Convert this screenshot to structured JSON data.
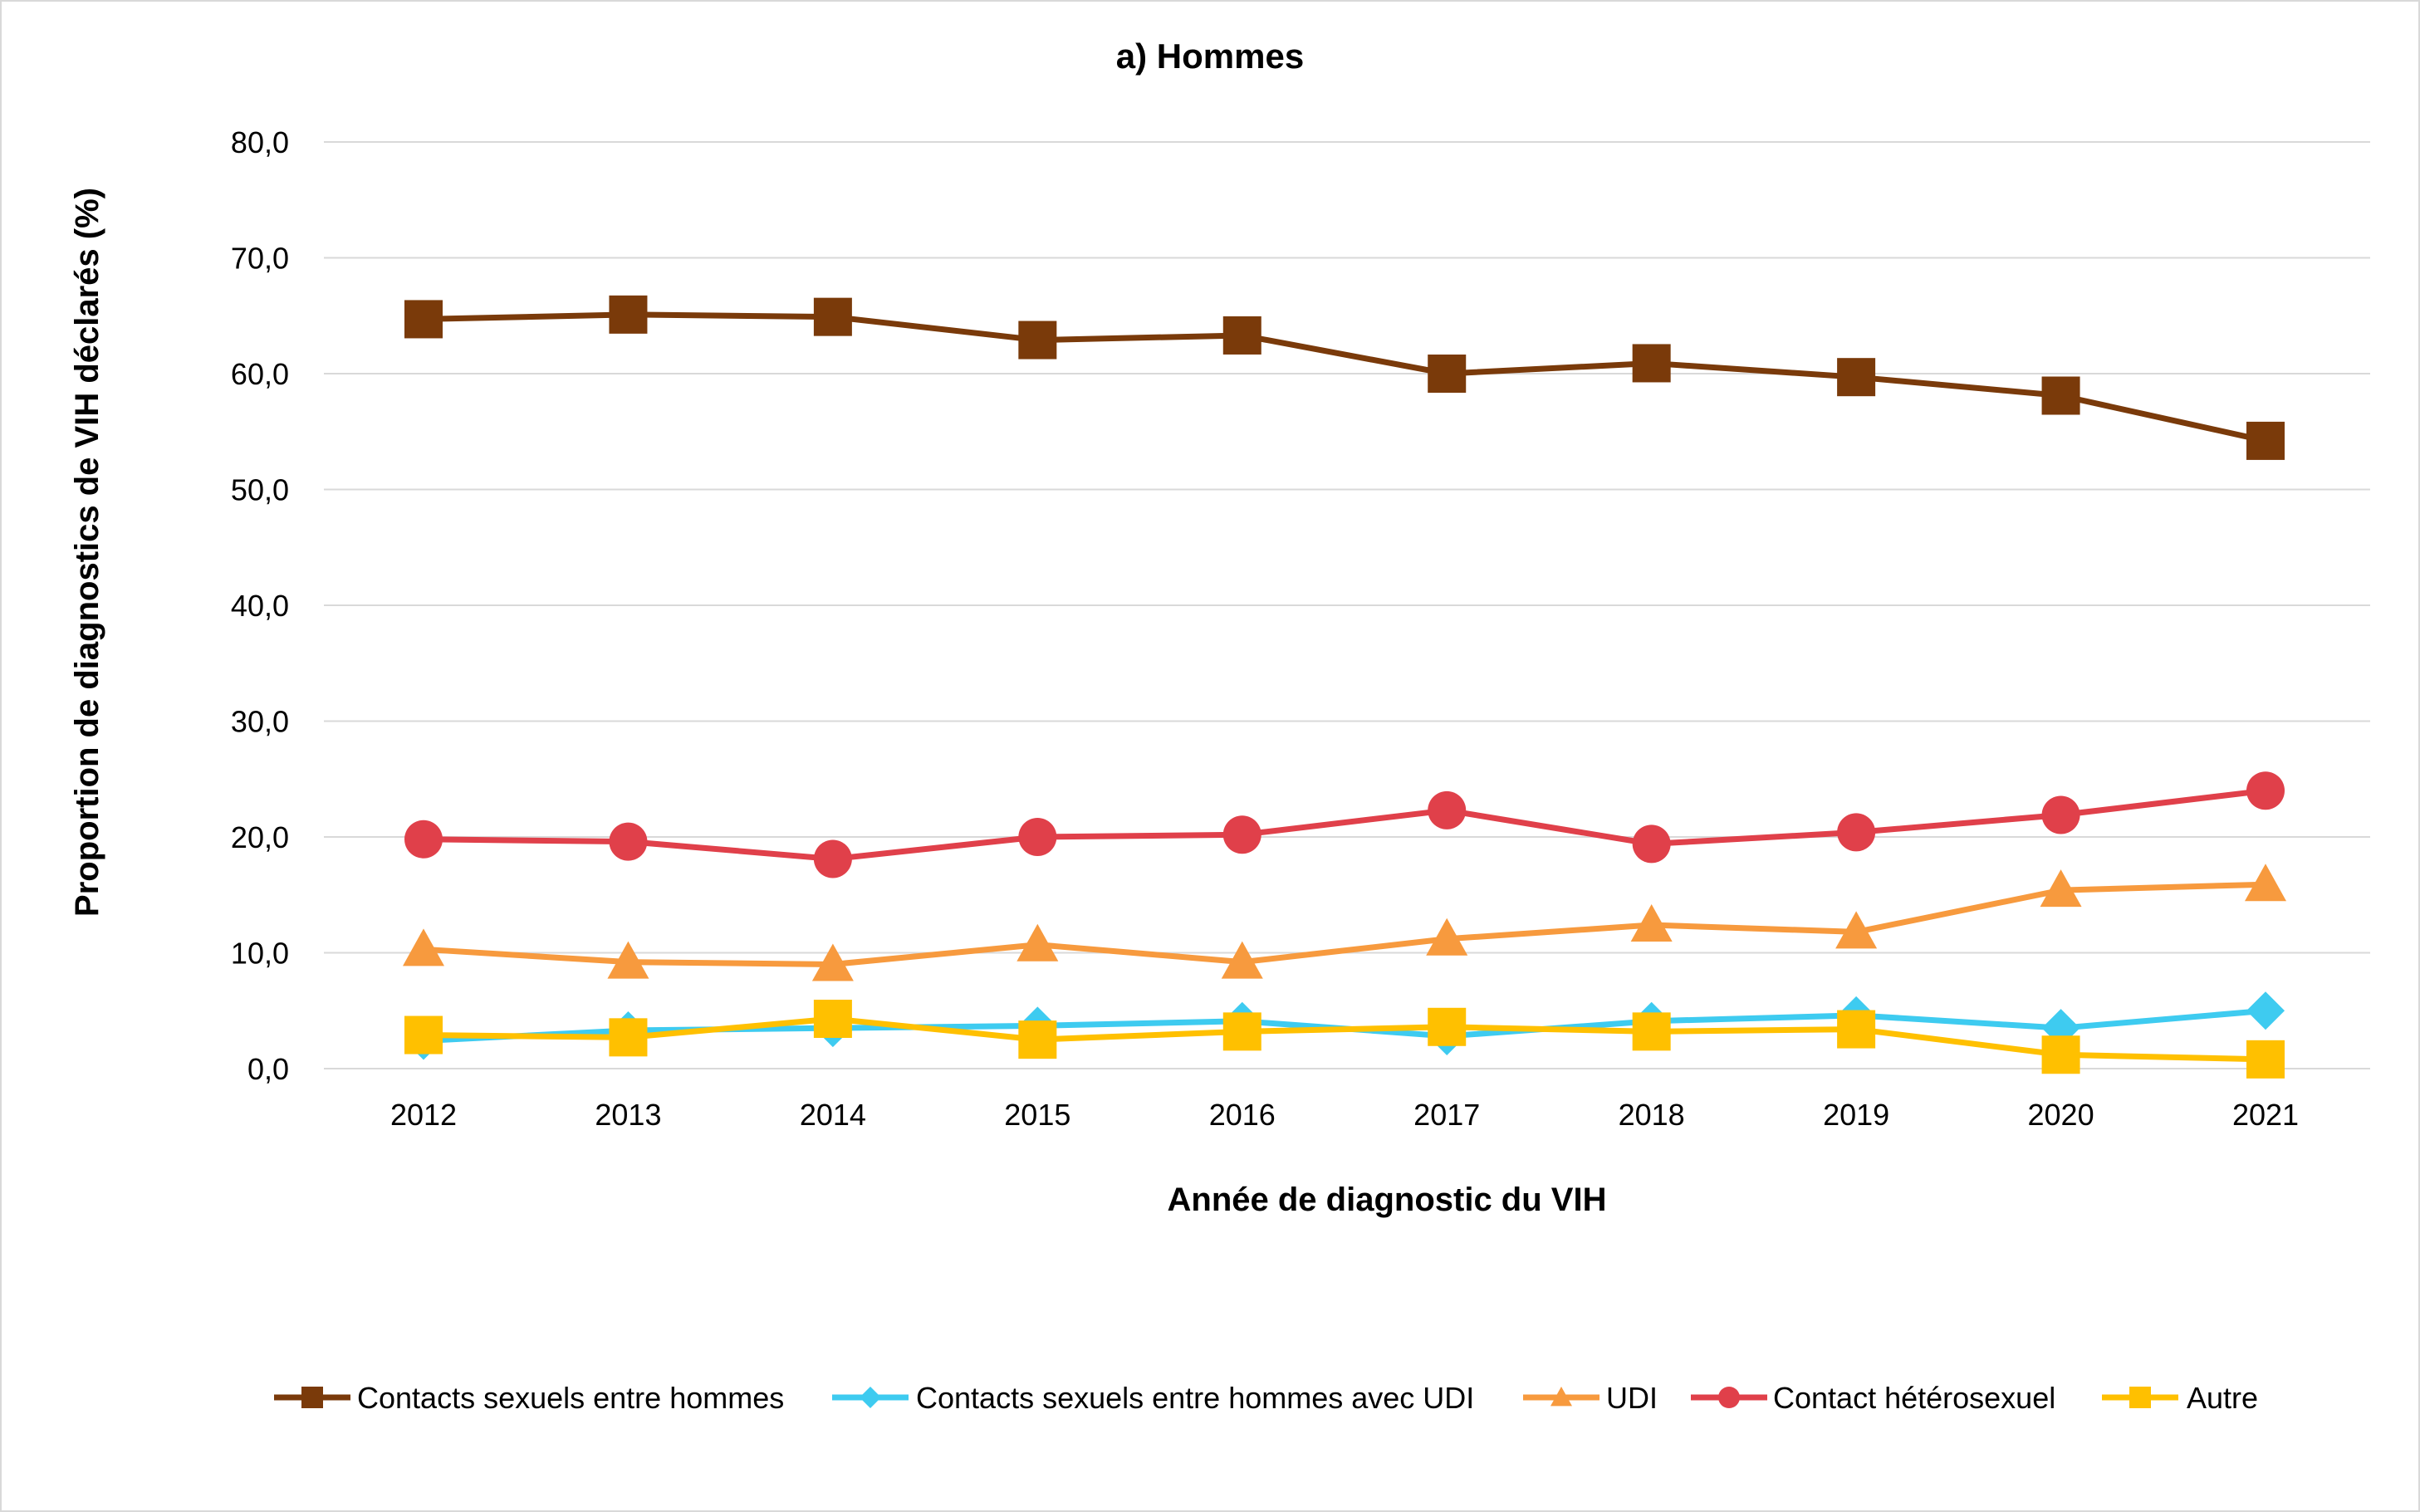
{
  "chart_data": {
    "type": "line",
    "title": "a) Hommes",
    "xlabel": "Année de diagnostic du VIH",
    "ylabel": "Proportion de diagnostics de VIH déclarés (%)",
    "ylim": [
      0,
      80
    ],
    "y_ticks": [
      "0,0",
      "10,0",
      "20,0",
      "30,0",
      "40,0",
      "50,0",
      "60,0",
      "70,0",
      "80,0"
    ],
    "grid": true,
    "legend_position": "bottom",
    "categories": [
      "2012",
      "2013",
      "2014",
      "2015",
      "2016",
      "2017",
      "2018",
      "2019",
      "2020",
      "2021"
    ],
    "series": [
      {
        "name": "Contacts sexuels entre hommes",
        "color": "#7a3a0a",
        "marker": "square",
        "values": [
          64.7,
          65.1,
          64.9,
          62.9,
          63.3,
          60.0,
          60.9,
          59.7,
          58.1,
          54.2
        ]
      },
      {
        "name": "Contacts sexuels entre hommes avec UDI",
        "color": "#3ecbf0",
        "marker": "diamond",
        "values": [
          2.4,
          3.3,
          3.5,
          3.7,
          4.1,
          2.8,
          4.1,
          4.6,
          3.5,
          5.0
        ]
      },
      {
        "name": "UDI",
        "color": "#f79a3e",
        "marker": "triangle",
        "values": [
          10.3,
          9.2,
          9.0,
          10.7,
          9.2,
          11.2,
          12.4,
          11.8,
          15.4,
          15.9
        ]
      },
      {
        "name": "Contact hétérosexuel",
        "color": "#e0404a",
        "marker": "circle",
        "values": [
          19.8,
          19.6,
          18.1,
          20.0,
          20.2,
          22.3,
          19.4,
          20.4,
          21.9,
          24.0
        ]
      },
      {
        "name": "Autre",
        "color": "#ffc000",
        "marker": "square",
        "values": [
          2.9,
          2.7,
          4.3,
          2.5,
          3.2,
          3.6,
          3.2,
          3.4,
          1.2,
          0.8
        ]
      }
    ]
  }
}
